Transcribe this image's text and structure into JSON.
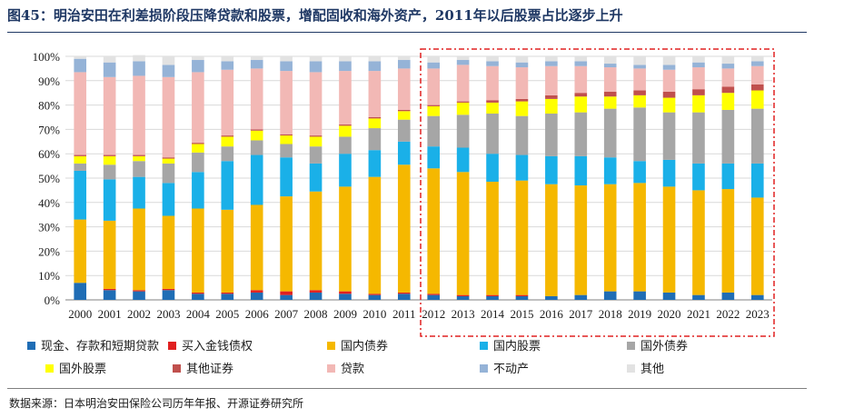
{
  "title": "图45：明治安田在利差损阶段压降贷款和股票，增配固收和海外资产，2011年以后股票占比逐步上升",
  "source": "数据来源：日本明治安田保险公司历年年报、开源证券研究所",
  "chart_data": {
    "type": "bar",
    "stacked": true,
    "ylim": [
      0,
      100
    ],
    "yticks": [
      "0%",
      "10%",
      "20%",
      "30%",
      "40%",
      "50%",
      "60%",
      "70%",
      "80%",
      "90%",
      "100%"
    ],
    "categories": [
      "2000",
      "2001",
      "2002",
      "2003",
      "2004",
      "2005",
      "2006",
      "2007",
      "2008",
      "2009",
      "2010",
      "2011",
      "2012",
      "2013",
      "2014",
      "2015",
      "2016",
      "2017",
      "2018",
      "2019",
      "2020",
      "2021",
      "2022",
      "2023"
    ],
    "highlight_range": [
      "2012",
      "2023"
    ],
    "legend_position": "bottom",
    "series": [
      {
        "name": "现金、存款和短期贷款",
        "color": "#1f6db5",
        "values": [
          7,
          4,
          3.5,
          4,
          2.5,
          2.5,
          3,
          2,
          3,
          2.5,
          2,
          2.5,
          2,
          1.5,
          1.5,
          1.5,
          1.5,
          2,
          3.5,
          3.5,
          3,
          2,
          3,
          2
        ]
      },
      {
        "name": "买入金钱债权",
        "color": "#e02020",
        "values": [
          0,
          0.5,
          0.5,
          0.5,
          0.5,
          0.5,
          1,
          1.5,
          1,
          1,
          0.5,
          0.5,
          0.5,
          0.5,
          0.5,
          0.5,
          0,
          0,
          0,
          0,
          0,
          0,
          0,
          0
        ]
      },
      {
        "name": "国内债券",
        "color": "#f5b800",
        "values": [
          26,
          28,
          33.5,
          30,
          34.5,
          34,
          35,
          39,
          40.5,
          43,
          48,
          52.5,
          51.5,
          50.5,
          46.5,
          47,
          46,
          45,
          44,
          44.5,
          43.5,
          43,
          42.5,
          40
        ]
      },
      {
        "name": "国内股票",
        "color": "#1ab0e8",
        "values": [
          20,
          17,
          13,
          13.5,
          15,
          20,
          20.5,
          16,
          11.5,
          13.5,
          11,
          9.5,
          9,
          10,
          11.5,
          10.5,
          11.5,
          12,
          11,
          9,
          11,
          11,
          10.5,
          14
        ]
      },
      {
        "name": "国外债券",
        "color": "#a6a6a6",
        "values": [
          3,
          6,
          6.5,
          8,
          8,
          6,
          6,
          5.5,
          7,
          7,
          9,
          9,
          12.5,
          13.5,
          16.5,
          16,
          17.5,
          18,
          20,
          22,
          19.5,
          21,
          22,
          22.5
        ]
      },
      {
        "name": "国外股票",
        "color": "#ffff00",
        "values": [
          3,
          3.5,
          2,
          2,
          3.5,
          4,
          4,
          3.5,
          4,
          4.5,
          4,
          3.5,
          4,
          5,
          4.5,
          6,
          6,
          6.5,
          5,
          5,
          6,
          7,
          7,
          7.5
        ]
      },
      {
        "name": "其他证券",
        "color": "#c0504d",
        "values": [
          0.5,
          0.5,
          0.5,
          0.5,
          0.5,
          0.5,
          0.5,
          0.5,
          0.5,
          0.5,
          0.5,
          0.5,
          0.5,
          0.5,
          1,
          1,
          1.5,
          1.5,
          2,
          2,
          2.5,
          2.5,
          2.5,
          2.5
        ]
      },
      {
        "name": "贷款",
        "color": "#f2b8b5",
        "values": [
          34,
          32,
          32.5,
          33,
          29,
          27,
          25,
          26,
          26,
          22,
          19,
          17,
          15,
          15,
          14,
          13,
          12,
          11,
          10,
          9,
          9,
          9,
          7.5,
          7.5
        ]
      },
      {
        "name": "不动产",
        "color": "#95b3d7",
        "values": [
          5.5,
          6,
          6,
          5,
          5,
          3.5,
          3.5,
          4,
          4.5,
          4,
          4,
          3.5,
          2.5,
          2,
          2,
          2,
          2,
          2,
          1.5,
          1.5,
          2,
          2,
          2,
          2
        ]
      },
      {
        "name": "其他",
        "color": "#e2e2e2",
        "values": [
          1,
          2.5,
          2.5,
          3.5,
          1.5,
          2,
          1.5,
          2,
          2,
          2,
          2,
          1.5,
          2.5,
          1.5,
          2,
          2.5,
          2,
          2,
          3,
          3.5,
          3.5,
          2.5,
          3,
          2
        ]
      }
    ]
  }
}
